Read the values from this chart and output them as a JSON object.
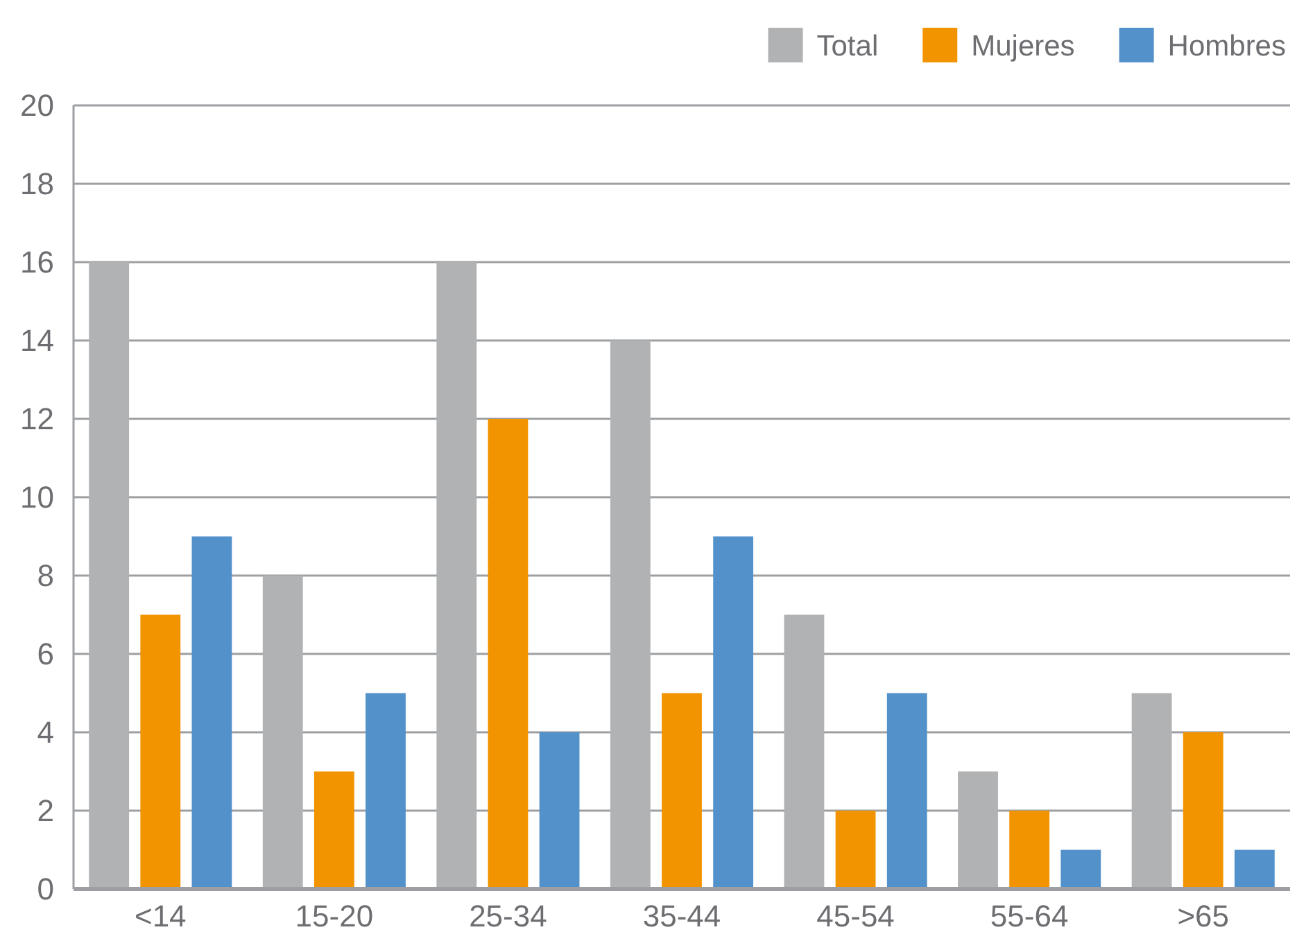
{
  "chart_data": {
    "type": "bar",
    "categories": [
      "<14",
      "15-20",
      "25-34",
      "35-44",
      "45-54",
      "55-64",
      ">65"
    ],
    "series": [
      {
        "name": "Total",
        "color": "#b1b2b4",
        "values": [
          16,
          8,
          16,
          14,
          7,
          3,
          5
        ]
      },
      {
        "name": "Mujeres",
        "color": "#f29400",
        "values": [
          7,
          3,
          12,
          5,
          2,
          2,
          4
        ]
      },
      {
        "name": "Hombres",
        "color": "#5291c9",
        "values": [
          9,
          5,
          4,
          9,
          5,
          1,
          1
        ]
      }
    ],
    "ylim": [
      0,
      20
    ],
    "yticks": [
      0,
      2,
      4,
      6,
      8,
      10,
      12,
      14,
      16,
      18,
      20
    ],
    "grid": "y",
    "legend": "top right"
  }
}
